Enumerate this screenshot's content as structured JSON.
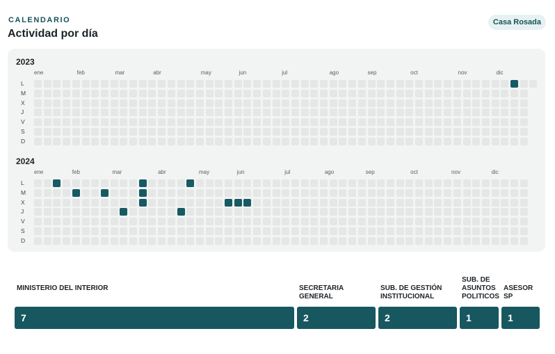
{
  "header": {
    "kicker": "CALENDARIO",
    "title": "Actividad por día",
    "badge": "Casa Rosada"
  },
  "calendar": {
    "day_labels": [
      "L",
      "M",
      "X",
      "J",
      "V",
      "S",
      "D"
    ],
    "years": [
      {
        "year": "2023",
        "weeks": 53,
        "last_week_days": 1,
        "months": [
          "ene",
          "feb",
          "mar",
          "abr",
          "may",
          "jun",
          "jul",
          "ago",
          "sep",
          "oct",
          "nov",
          "dic"
        ],
        "active": [
          {
            "week": 50,
            "day": 0
          }
        ]
      },
      {
        "year": "2024",
        "weeks": 52,
        "last_week_days": 7,
        "months": [
          "ene",
          "feb",
          "mar",
          "abr",
          "may",
          "jun",
          "jul",
          "ago",
          "sep",
          "oct",
          "nov",
          "dic"
        ],
        "active": [
          {
            "week": 2,
            "day": 0
          },
          {
            "week": 4,
            "day": 1
          },
          {
            "week": 7,
            "day": 1
          },
          {
            "week": 9,
            "day": 3
          },
          {
            "week": 11,
            "day": 0
          },
          {
            "week": 11,
            "day": 1
          },
          {
            "week": 11,
            "day": 2
          },
          {
            "week": 15,
            "day": 3
          },
          {
            "week": 16,
            "day": 0
          },
          {
            "week": 20,
            "day": 2
          },
          {
            "week": 21,
            "day": 2
          },
          {
            "week": 22,
            "day": 2
          }
        ]
      }
    ]
  },
  "organizations": [
    {
      "name": "MINISTERIO DEL INTERIOR",
      "count": 7
    },
    {
      "name": "SECRETARIA GENERAL",
      "count": 2
    },
    {
      "name": "SUB. DE GESTIÓN INSTITUCIONAL",
      "count": 2
    },
    {
      "name": "SUB. DE ASUNTOS POLITICOS",
      "count": 1
    },
    {
      "name": "ASESOR SP",
      "count": 1
    }
  ],
  "colors": {
    "accent": "#165a64",
    "empty_cell": "#e4e7e6",
    "panel": "#f2f4f3"
  }
}
